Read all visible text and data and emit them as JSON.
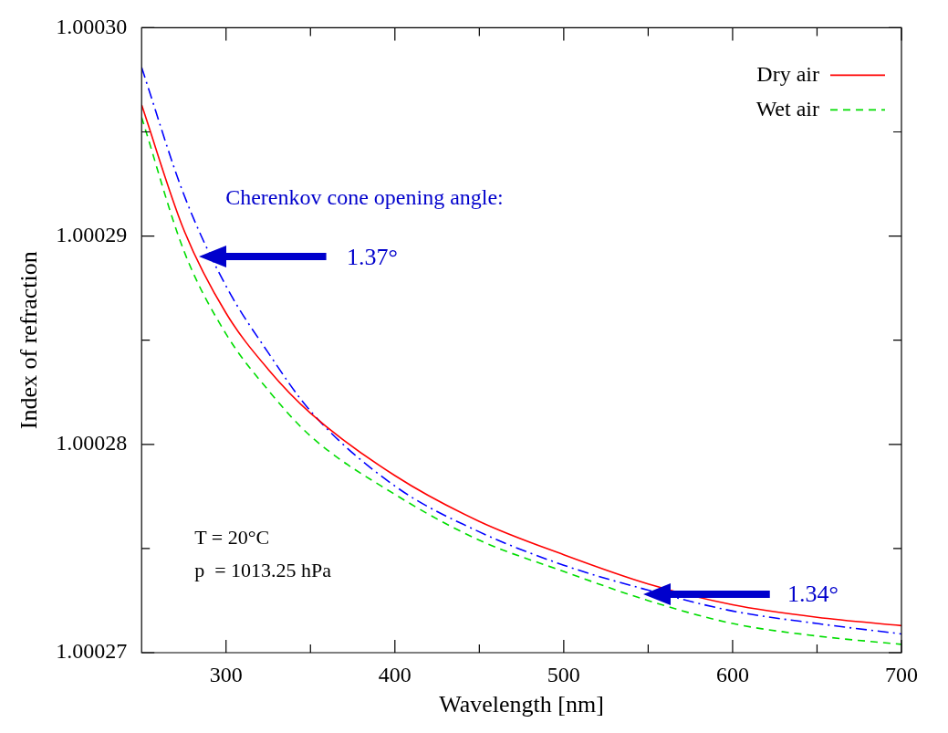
{
  "chart_data": {
    "type": "line",
    "xlabel": "Wavelength [nm]",
    "ylabel": "Index of refraction",
    "xlim": [
      250,
      700
    ],
    "xticks": [
      300,
      {
        "value": 350,
        "label": null
      },
      400,
      {
        "value": 450,
        "label": null
      },
      500,
      {
        "value": 550,
        "label": null
      },
      600,
      {
        "value": 650,
        "label": null
      },
      700
    ],
    "ylim": [
      1.00027,
      1.0003
    ],
    "yticks": [
      1.00027,
      {
        "value": 1.000275,
        "label": null
      },
      1.00028,
      {
        "value": 1.000285,
        "label": null
      },
      1.00029,
      {
        "value": 1.000295,
        "label": null
      },
      {
        "value": 1.0003,
        "label": "1.00030"
      }
    ],
    "grid": false,
    "legend": "top right",
    "marker": "none",
    "series": [
      {
        "name": "Dry air",
        "color": "#ff0000",
        "line_style": "solid",
        "x": [
          250,
          275,
          300,
          325,
          350,
          400,
          450,
          500,
          550,
          600,
          650,
          700
        ],
        "values": [
          1.0002963,
          1.0002903,
          1.0002863,
          1.0002836,
          1.0002815,
          1.0002785,
          1.0002763,
          1.0002747,
          1.0002733,
          1.0002723,
          1.0002717,
          1.0002713
        ]
      },
      {
        "name": "Wet air",
        "color": "#00dd00",
        "line_style": "dashed",
        "x": [
          250,
          275,
          300,
          325,
          350,
          400,
          450,
          500,
          550,
          600,
          650,
          700
        ],
        "values": [
          1.0002957,
          1.0002893,
          1.0002853,
          1.0002826,
          1.0002804,
          1.0002776,
          1.0002754,
          1.0002739,
          1.0002725,
          1.0002714,
          1.0002708,
          1.0002704
        ]
      },
      {
        "color": "#0000ff",
        "line_style": "dashdot",
        "x": [
          250,
          275,
          300,
          325,
          350,
          400,
          450,
          500,
          550,
          600,
          650,
          700
        ],
        "values": [
          1.0002981,
          1.000292,
          1.0002876,
          1.0002844,
          1.0002816,
          1.000278,
          1.0002758,
          1.0002742,
          1.000273,
          1.000272,
          1.0002714,
          1.0002709
        ]
      }
    ],
    "annotations": [
      "Cherenkov cone opening angle:",
      "1.37°",
      "1.34°",
      "T = 20°C",
      "p  = 1013.25 hPa"
    ]
  }
}
